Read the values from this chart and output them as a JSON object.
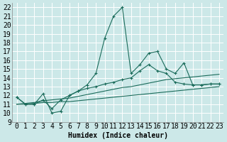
{
  "xlabel": "Humidex (Indice chaleur)",
  "ylabel": "",
  "bg_color": "#cce8e8",
  "grid_color": "#b0d4d4",
  "line_color": "#1a6b5a",
  "xlim": [
    -0.5,
    23.5
  ],
  "ylim": [
    9,
    22.5
  ],
  "xticks": [
    0,
    1,
    2,
    3,
    4,
    5,
    6,
    7,
    8,
    9,
    10,
    11,
    12,
    13,
    14,
    15,
    16,
    17,
    18,
    19,
    20,
    21,
    22,
    23
  ],
  "yticks": [
    9,
    10,
    11,
    12,
    13,
    14,
    15,
    16,
    17,
    18,
    19,
    20,
    21,
    22
  ],
  "series": [
    [
      11.8,
      11.0,
      11.0,
      12.2,
      10.0,
      10.2,
      12.0,
      12.5,
      13.2,
      14.5,
      18.5,
      21.0,
      22.0,
      14.5,
      15.5,
      16.8,
      17.0,
      15.0,
      14.5,
      15.7,
      13.2,
      13.2,
      13.3,
      13.3
    ],
    [
      11.8,
      11.0,
      11.0,
      11.5,
      10.5,
      11.5,
      12.0,
      12.5,
      12.8,
      13.0,
      13.3,
      13.5,
      13.8,
      14.0,
      14.8,
      15.5,
      14.8,
      14.5,
      13.5,
      13.3,
      13.2,
      13.2,
      13.3,
      13.3
    ],
    [
      11.0,
      11.1,
      11.2,
      11.4,
      11.5,
      11.6,
      11.7,
      11.9,
      12.1,
      12.3,
      12.5,
      12.7,
      12.9,
      13.0,
      13.2,
      13.4,
      13.6,
      13.8,
      13.9,
      14.0,
      14.1,
      14.2,
      14.3,
      14.4
    ],
    [
      11.0,
      11.0,
      11.1,
      11.2,
      11.2,
      11.3,
      11.3,
      11.4,
      11.5,
      11.6,
      11.7,
      11.8,
      11.9,
      12.0,
      12.1,
      12.2,
      12.3,
      12.4,
      12.5,
      12.6,
      12.7,
      12.8,
      12.9,
      13.0
    ]
  ],
  "has_markers": [
    true,
    true,
    false,
    false
  ],
  "marker_style": "+",
  "marker_size": 3,
  "marker_edge_width": 0.8,
  "linewidths": [
    0.8,
    0.8,
    0.8,
    0.8
  ],
  "font_size": 7
}
